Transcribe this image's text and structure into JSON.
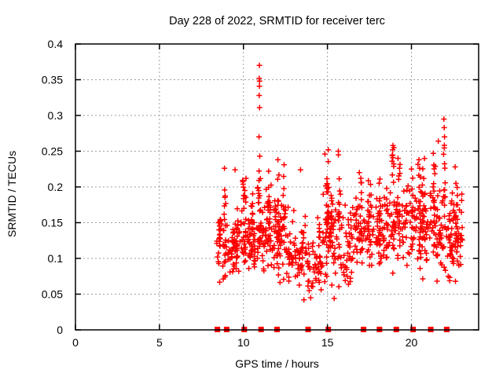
{
  "chart_data": {
    "type": "scatter",
    "title": "Day 228 of 2022, SRMTID for receiver terc",
    "xlabel": "GPS time / hours",
    "ylabel": "SRMTID / TECUs",
    "xlim": [
      0,
      24
    ],
    "ylim": [
      0,
      0.4
    ],
    "xticks": [
      0,
      5,
      10,
      15,
      20
    ],
    "xticklabels": [
      "0",
      "5",
      "10",
      "15",
      "20"
    ],
    "yticks": [
      0,
      0.05,
      0.1,
      0.15,
      0.2,
      0.25,
      0.3,
      0.35,
      0.4
    ],
    "yticklabels": [
      "0",
      "0.05",
      "0.1",
      "0.15",
      "0.2",
      "0.25",
      "0.3",
      "0.35",
      "0.4"
    ],
    "grid": true,
    "legend": "none",
    "marker": {
      "shape": "plus",
      "color": "#ff0000",
      "size": 7
    },
    "baseline_marker": {
      "shape": "square",
      "color": "#ff0000",
      "size": 7,
      "y": 0
    },
    "baseline_hours": [
      8.45,
      9.0,
      10.05,
      11.05,
      12.0,
      13.85,
      15.05,
      17.15,
      18.1,
      19.1,
      20.1,
      21.15,
      22.1
    ],
    "data_extent": {
      "x_first": 8.35,
      "x_last": 23.05,
      "y_min": 0.04,
      "y_max": 0.37
    },
    "outliers": [
      [
        10.95,
        0.37
      ],
      [
        10.94,
        0.352
      ],
      [
        10.96,
        0.348
      ],
      [
        10.95,
        0.341
      ],
      [
        10.94,
        0.328
      ],
      [
        10.96,
        0.311
      ],
      [
        10.93,
        0.27
      ],
      [
        10.97,
        0.243
      ],
      [
        21.93,
        0.295
      ],
      [
        21.95,
        0.283
      ],
      [
        21.97,
        0.27
      ],
      [
        21.6,
        0.264
      ],
      [
        18.9,
        0.258
      ],
      [
        18.88,
        0.252
      ],
      [
        15.05,
        0.252
      ],
      [
        15.65,
        0.25
      ],
      [
        14.85,
        0.246
      ],
      [
        21.3,
        0.247
      ],
      [
        12.05,
        0.238
      ],
      [
        20.45,
        0.238
      ],
      [
        19.2,
        0.24
      ],
      [
        12.42,
        0.231
      ],
      [
        13.4,
        0.224
      ],
      [
        8.87,
        0.226
      ],
      [
        9.5,
        0.224
      ],
      [
        11.5,
        0.222
      ],
      [
        22.6,
        0.228
      ],
      [
        10.15,
        0.212
      ],
      [
        16.9,
        0.22
      ],
      [
        20.0,
        0.225
      ],
      [
        23.0,
        0.19
      ],
      [
        14.0,
        0.045
      ],
      [
        13.6,
        0.042
      ],
      [
        15.4,
        0.044
      ]
    ],
    "bands": [
      [
        8.35,
        9.6,
        0.065,
        0.165,
        60
      ],
      [
        9.6,
        10.7,
        0.07,
        0.185,
        70
      ],
      [
        10.7,
        11.9,
        0.075,
        0.21,
        75
      ],
      [
        11.9,
        12.7,
        0.06,
        0.2,
        55
      ],
      [
        12.7,
        13.8,
        0.048,
        0.17,
        50
      ],
      [
        13.8,
        14.7,
        0.042,
        0.135,
        45
      ],
      [
        14.7,
        15.5,
        0.06,
        0.21,
        60
      ],
      [
        15.5,
        16.6,
        0.055,
        0.185,
        55
      ],
      [
        16.6,
        17.8,
        0.08,
        0.2,
        65
      ],
      [
        17.8,
        19.0,
        0.07,
        0.21,
        65
      ],
      [
        19.0,
        20.2,
        0.08,
        0.22,
        65
      ],
      [
        20.2,
        21.5,
        0.08,
        0.22,
        70
      ],
      [
        21.5,
        22.6,
        0.06,
        0.21,
        65
      ],
      [
        22.6,
        23.05,
        0.06,
        0.19,
        35
      ]
    ],
    "streaks": [
      [
        8.5,
        8.62,
        0.09,
        0.16,
        12
      ],
      [
        8.85,
        8.95,
        0.15,
        0.215,
        7
      ],
      [
        9.35,
        9.6,
        0.08,
        0.15,
        14
      ],
      [
        9.95,
        10.15,
        0.11,
        0.21,
        16
      ],
      [
        10.45,
        10.6,
        0.09,
        0.2,
        12
      ],
      [
        10.9,
        11.02,
        0.12,
        0.25,
        16
      ],
      [
        11.45,
        11.6,
        0.1,
        0.2,
        12
      ],
      [
        12.0,
        12.12,
        0.13,
        0.235,
        12
      ],
      [
        12.38,
        12.5,
        0.14,
        0.225,
        8
      ],
      [
        13.3,
        13.5,
        0.08,
        0.12,
        10
      ],
      [
        14.4,
        14.55,
        0.08,
        0.16,
        8
      ],
      [
        14.95,
        15.1,
        0.13,
        0.245,
        14
      ],
      [
        15.2,
        15.32,
        0.12,
        0.21,
        8
      ],
      [
        15.6,
        15.78,
        0.13,
        0.245,
        10
      ],
      [
        16.85,
        17.05,
        0.12,
        0.215,
        10
      ],
      [
        17.4,
        17.6,
        0.12,
        0.21,
        10
      ],
      [
        18.05,
        18.2,
        0.08,
        0.225,
        12
      ],
      [
        18.5,
        18.62,
        0.09,
        0.2,
        10
      ],
      [
        18.85,
        18.97,
        0.15,
        0.255,
        12
      ],
      [
        19.15,
        19.35,
        0.13,
        0.235,
        10
      ],
      [
        20.0,
        20.1,
        0.13,
        0.22,
        8
      ],
      [
        20.35,
        20.55,
        0.1,
        0.235,
        12
      ],
      [
        20.6,
        20.9,
        0.07,
        0.24,
        14
      ],
      [
        21.25,
        21.45,
        0.09,
        0.24,
        12
      ],
      [
        21.9,
        22.02,
        0.15,
        0.26,
        12
      ],
      [
        22.3,
        22.5,
        0.08,
        0.2,
        10
      ],
      [
        22.55,
        22.75,
        0.12,
        0.21,
        10
      ]
    ],
    "colors": {
      "points": "#ff0000",
      "grid": "#9e9e9e",
      "border": "#000000",
      "background": "#ffffff",
      "text": "#000000"
    }
  }
}
